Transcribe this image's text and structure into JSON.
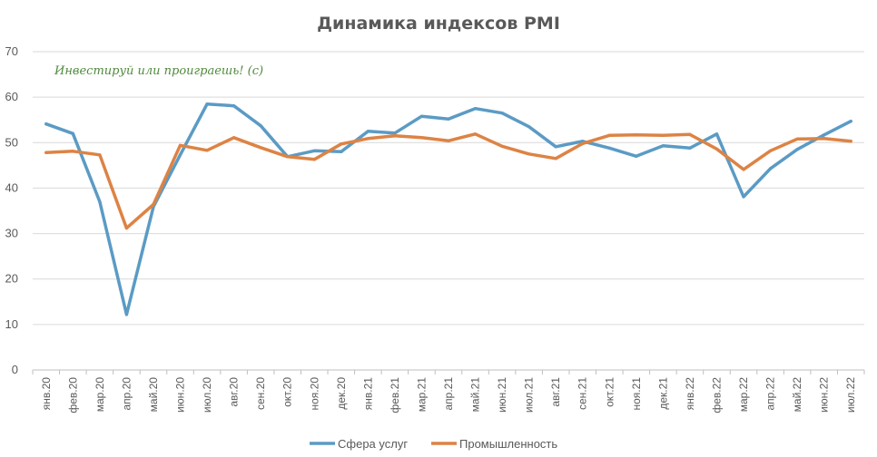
{
  "chart_data": {
    "type": "line",
    "title": "Динамика индексов PMI",
    "annotation": "Инвестируй или проиграешь! (с)",
    "xlabel": "",
    "ylabel": "",
    "ylim": [
      0,
      70
    ],
    "yticks": [
      0,
      10,
      20,
      30,
      40,
      50,
      60,
      70
    ],
    "grid": true,
    "legend": "bottom",
    "categories": [
      "янв.20",
      "фев.20",
      "мар.20",
      "апр.20",
      "май.20",
      "июн.20",
      "июл.20",
      "авг.20",
      "сен.20",
      "окт.20",
      "ноя.20",
      "дек.20",
      "янв.21",
      "фев.21",
      "мар.21",
      "апр.21",
      "май.21",
      "июн.21",
      "июл.21",
      "авг.21",
      "сен.21",
      "окт.21",
      "ноя.21",
      "дек.21",
      "янв.22",
      "фев.22",
      "мар.22",
      "апр.22",
      "май.22",
      "июн.22",
      "июл.22"
    ],
    "series": [
      {
        "name": "Сфера услуг",
        "color": "#5b9bc4",
        "values": [
          54.1,
          52.0,
          37.0,
          12.2,
          35.9,
          47.3,
          58.5,
          58.1,
          53.7,
          46.9,
          48.2,
          48.0,
          52.5,
          52.1,
          55.8,
          55.2,
          57.5,
          56.5,
          53.5,
          49.1,
          50.3,
          48.8,
          47.0,
          49.3,
          48.8,
          51.9,
          38.1,
          44.3,
          48.5,
          51.7,
          54.7
        ]
      },
      {
        "name": "Промышленность",
        "color": "#dd8344",
        "values": [
          47.8,
          48.1,
          47.3,
          31.2,
          36.4,
          49.4,
          48.3,
          51.1,
          48.9,
          46.9,
          46.3,
          49.7,
          50.9,
          51.5,
          51.1,
          50.4,
          51.9,
          49.2,
          47.5,
          46.5,
          49.8,
          51.6,
          51.7,
          51.6,
          51.8,
          48.6,
          44.1,
          48.2,
          50.8,
          50.9,
          50.3
        ]
      }
    ]
  }
}
